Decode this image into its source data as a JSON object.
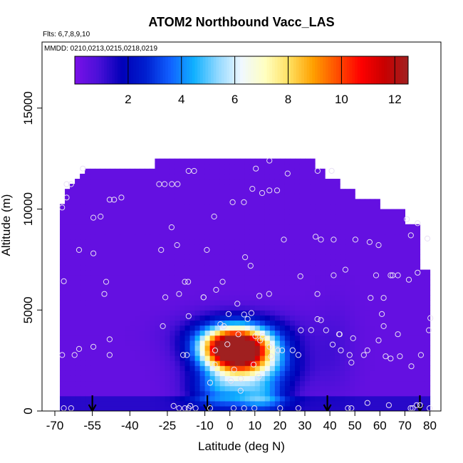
{
  "chart_data": {
    "type": "heatmap",
    "title": "ATOM2 Northbound Vacc_LAS",
    "flights_label": "Flts: 6,7,8,9,10",
    "dates_label": "MMDD: 0210,0213,0215,0218,0219",
    "xlabel": "Latitude (deg N)",
    "ylabel": "Altitude (m)",
    "xlim": [
      -70,
      80
    ],
    "ylim": [
      0,
      17500
    ],
    "x_ticks": [
      -70,
      -55,
      -40,
      -25,
      -10,
      0,
      10,
      20,
      30,
      40,
      50,
      60,
      70,
      80
    ],
    "x_tick_labels": [
      "-70",
      "-55",
      "-40",
      "-25",
      "-10",
      "0",
      "10",
      "20",
      "30",
      "40",
      "50",
      "60",
      "70",
      "80"
    ],
    "y_ticks": [
      0,
      5000,
      10000,
      15000
    ],
    "y_tick_labels": [
      "0",
      "5000",
      "10000",
      "15000"
    ],
    "colorbar": {
      "range": [
        0,
        12.5
      ],
      "ticks": [
        2,
        4,
        6,
        8,
        10,
        12
      ],
      "tick_labels": [
        "2",
        "4",
        "6",
        "8",
        "10",
        "12"
      ],
      "colors": [
        "#7a10e8",
        "#4a10d8",
        "#0000b8",
        "#0020d0",
        "#1060ff",
        "#10b0ff",
        "#90d8ff",
        "#f0f8ff",
        "#ffffc0",
        "#ffe060",
        "#ffa000",
        "#ff5000",
        "#ff0000",
        "#c80000",
        "#a02020"
      ]
    },
    "background_value": 0.4,
    "domain_outline": [
      [
        -68,
        0
      ],
      [
        -68,
        10000
      ],
      [
        -66,
        10500
      ],
      [
        -64,
        11300
      ],
      [
        -57,
        11800
      ],
      [
        -57,
        12100
      ],
      [
        -30,
        12100
      ],
      [
        -30,
        12500
      ],
      [
        35,
        12500
      ],
      [
        35,
        12000
      ],
      [
        38,
        12000
      ],
      [
        38,
        11500
      ],
      [
        44,
        11500
      ],
      [
        44,
        11000
      ],
      [
        50,
        11000
      ],
      [
        50,
        10500
      ],
      [
        60,
        10500
      ],
      [
        60,
        10000
      ],
      [
        70,
        10000
      ],
      [
        70,
        9200
      ],
      [
        76,
        9200
      ],
      [
        76,
        7000
      ],
      [
        80,
        7000
      ],
      [
        80,
        0
      ]
    ],
    "plume": [
      {
        "lat": 2,
        "alt": 3100,
        "value": 12.2,
        "sx": 9,
        "sy": 650
      },
      {
        "lat": 7,
        "alt": 2200,
        "value": 5.5,
        "sx": 12,
        "sy": 850
      },
      {
        "lat": -5,
        "alt": 1000,
        "value": 2.5,
        "sx": 8,
        "sy": 600
      },
      {
        "lat": 13,
        "alt": 700,
        "value": 2.8,
        "sx": 7,
        "sy": 500
      },
      {
        "lat": 3,
        "alt": 3800,
        "value": 3.0,
        "sx": 14,
        "sy": 700
      },
      {
        "lat": 42,
        "alt": 3000,
        "value": 0.5,
        "sx": 6,
        "sy": 1600
      }
    ],
    "surface_band": {
      "alt_top": 700,
      "value": 0.9
    },
    "arrows_lat": [
      -55,
      -9,
      39,
      76
    ],
    "points": [
      [
        -66.4,
        6426
      ],
      [
        -65.3,
        11233
      ],
      [
        -63.5,
        11233
      ],
      [
        -58.8,
        12004
      ],
      [
        -65.3,
        10572
      ],
      [
        -60.3,
        7977
      ],
      [
        -54.6,
        7807
      ],
      [
        -67.1,
        10077
      ],
      [
        -54.6,
        9573
      ],
      [
        -51.7,
        9628
      ],
      [
        -48.1,
        10465
      ],
      [
        -46.3,
        10465
      ],
      [
        -43.4,
        10572
      ],
      [
        -50.2,
        5796
      ],
      [
        -49.5,
        6400
      ],
      [
        -48.1,
        3550
      ],
      [
        -48.1,
        2773
      ],
      [
        -54.6,
        3182
      ],
      [
        -60.3,
        3073
      ],
      [
        -67.1,
        2773
      ],
      [
        -66.4,
        137
      ],
      [
        -63.5,
        137
      ],
      [
        -62.1,
        2773
      ],
      [
        -28.3,
        11233
      ],
      [
        -26.1,
        11233
      ],
      [
        -23.2,
        11233
      ],
      [
        -20.9,
        11233
      ],
      [
        -16.5,
        11886
      ],
      [
        -14.3,
        11886
      ],
      [
        -23.3,
        9096
      ],
      [
        -21.1,
        8215
      ],
      [
        -27.5,
        7977
      ],
      [
        -9.2,
        7977
      ],
      [
        -25.8,
        5631
      ],
      [
        -20.3,
        5796
      ],
      [
        -16.7,
        6400
      ],
      [
        -18.0,
        6400
      ],
      [
        -18.7,
        2773
      ],
      [
        -10.5,
        5631
      ],
      [
        -6.3,
        9628
      ],
      [
        -5.5,
        6000
      ],
      [
        1.1,
        10340
      ],
      [
        5.6,
        10340
      ],
      [
        9.0,
        11000
      ],
      [
        12.9,
        10792
      ],
      [
        15.8,
        10923
      ],
      [
        18.9,
        10923
      ],
      [
        10.4,
        12004
      ],
      [
        15.8,
        12400
      ],
      [
        21.6,
        8486
      ],
      [
        6.1,
        7617
      ],
      [
        8.3,
        7194
      ],
      [
        -2.9,
        6400
      ],
      [
        -10.5,
        5631
      ],
      [
        3.0,
        5313
      ],
      [
        11.8,
        5701
      ],
      [
        5.7,
        4778
      ],
      [
        7.1,
        4553
      ],
      [
        13.1,
        3709
      ],
      [
        10.2,
        3709
      ],
      [
        15.9,
        3182
      ],
      [
        20.9,
        3007
      ],
      [
        27.4,
        2773
      ],
      [
        28.2,
        6671
      ],
      [
        35.0,
        5796
      ],
      [
        34.3,
        8632
      ],
      [
        36.4,
        8486
      ],
      [
        41.5,
        8486
      ],
      [
        46.2,
        7000
      ],
      [
        50.2,
        8486
      ],
      [
        55.9,
        8364
      ],
      [
        59.5,
        8215
      ],
      [
        58.5,
        6719
      ],
      [
        64.3,
        6719
      ],
      [
        65.1,
        6719
      ],
      [
        67.2,
        6719
      ],
      [
        71.6,
        6500
      ],
      [
        75.1,
        6850
      ],
      [
        72.4,
        8700
      ],
      [
        70.8,
        9500
      ],
      [
        75.1,
        9300
      ],
      [
        79.0,
        8540
      ],
      [
        35.1,
        11890
      ],
      [
        40.7,
        11890
      ],
      [
        23.1,
        11760
      ],
      [
        25.1,
        3009
      ],
      [
        28.4,
        4000
      ],
      [
        32.5,
        4007
      ],
      [
        36.4,
        4500
      ],
      [
        41.5,
        6718
      ],
      [
        43.7,
        3801
      ],
      [
        44.4,
        3007
      ],
      [
        47.9,
        2773
      ],
      [
        49.3,
        3601
      ],
      [
        53.6,
        2773
      ],
      [
        55.0,
        3007
      ],
      [
        56.3,
        5600
      ],
      [
        61.5,
        5600
      ],
      [
        60.8,
        4800
      ],
      [
        61.5,
        4200
      ],
      [
        62.3,
        2708
      ],
      [
        64.3,
        2600
      ],
      [
        67.2,
        3801
      ],
      [
        68.0,
        2708
      ],
      [
        72.6,
        2214
      ],
      [
        76.4,
        2773
      ],
      [
        79.6,
        4000
      ],
      [
        80.2,
        4600
      ],
      [
        59.5,
        3500
      ],
      [
        48.6,
        2400
      ],
      [
        43.9,
        3801
      ],
      [
        38.5,
        4000
      ],
      [
        41.1,
        3290
      ],
      [
        35.0,
        4550
      ],
      [
        -16.5,
        137
      ],
      [
        27.4,
        137
      ],
      [
        20.1,
        137
      ],
      [
        9.8,
        137
      ],
      [
        5.7,
        137
      ],
      [
        1.5,
        137
      ],
      [
        -7.9,
        137
      ],
      [
        -13.7,
        137
      ],
      [
        -20.3,
        137
      ],
      [
        -15.8,
        250
      ],
      [
        -22.5,
        250
      ],
      [
        48.6,
        137
      ],
      [
        47.2,
        137
      ],
      [
        55.0,
        400
      ],
      [
        63.6,
        290
      ],
      [
        72.3,
        137
      ],
      [
        73.1,
        137
      ],
      [
        74.7,
        290
      ],
      [
        79.9,
        137
      ],
      [
        76.1,
        290
      ],
      [
        -18.0,
        137
      ],
      [
        -26.8,
        4200
      ],
      [
        -17.2,
        2773
      ],
      [
        -16.5,
        4700
      ],
      [
        -7.9,
        1400
      ],
      [
        -6.0,
        2300
      ],
      [
        -5.9,
        3000
      ],
      [
        -3.8,
        4300
      ],
      [
        -2.4,
        4200
      ],
      [
        -1.0,
        3300
      ],
      [
        0.4,
        1500
      ],
      [
        1.7,
        2050
      ],
      [
        3.4,
        3800
      ],
      [
        4.4,
        1600
      ],
      [
        4.3,
        1000
      ],
      [
        8.6,
        4850
      ],
      [
        9.5,
        2300
      ],
      [
        11.5,
        1700
      ],
      [
        12.1,
        3500
      ],
      [
        16.5,
        2700
      ],
      [
        19.2,
        3000
      ],
      [
        -0.5,
        4800
      ],
      [
        15.7,
        5800
      ]
    ]
  }
}
